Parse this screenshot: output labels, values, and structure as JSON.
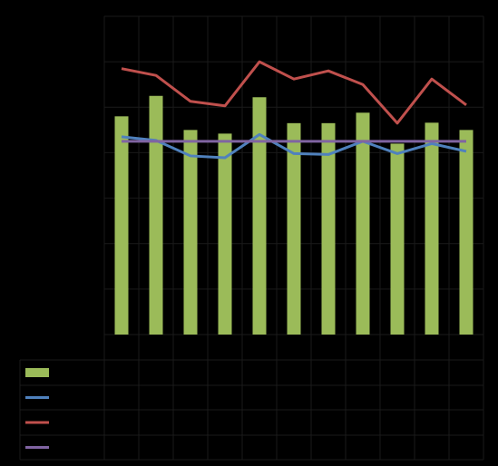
{
  "chart_data": {
    "type": "bar",
    "title": "",
    "xlabel": "",
    "ylabel": "",
    "ylim": [
      0,
      7
    ],
    "grid": true,
    "legend_position": "bottom-table",
    "categories": [
      "",
      "",
      "",
      "",
      "",
      "",
      "",
      "",
      "",
      "",
      ""
    ],
    "series": [
      {
        "type": "bar",
        "color": "#9BBB59",
        "values": [
          4.8,
          5.25,
          4.5,
          4.42,
          5.22,
          4.65,
          4.65,
          4.88,
          4.2,
          4.66,
          4.5
        ]
      },
      {
        "type": "line",
        "color": "#4F81BD",
        "values": [
          4.35,
          4.27,
          3.93,
          3.89,
          4.4,
          3.98,
          3.96,
          4.25,
          3.98,
          4.2,
          4.03
        ]
      },
      {
        "type": "line",
        "color": "#C0504D",
        "values": [
          5.85,
          5.7,
          5.13,
          5.03,
          6.0,
          5.62,
          5.8,
          5.5,
          4.65,
          5.62,
          5.05
        ]
      },
      {
        "type": "line",
        "color": "#8064A2",
        "values": [
          4.25,
          4.25,
          4.25,
          4.25,
          4.25,
          4.25,
          4.25,
          4.25,
          4.25,
          4.25,
          4.25
        ]
      }
    ]
  }
}
